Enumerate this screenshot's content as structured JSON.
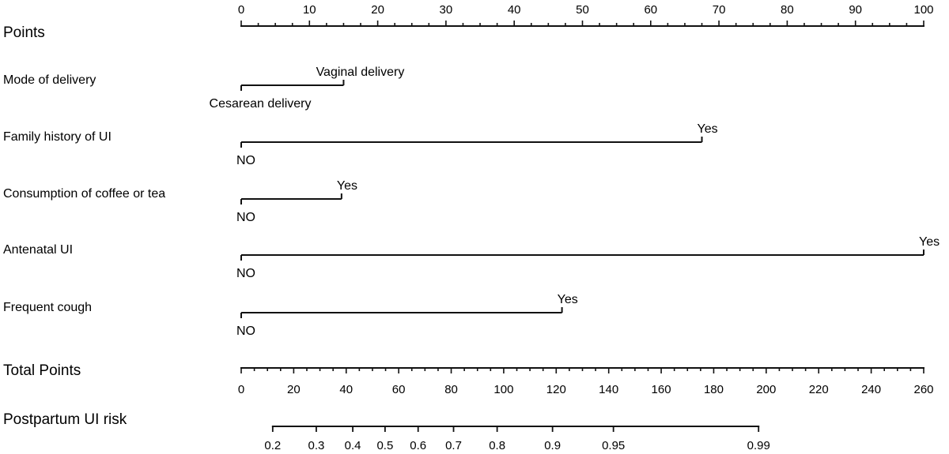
{
  "chart_data": {
    "type": "nomogram",
    "title": "",
    "points_axis": {
      "label": "Points",
      "min": 0,
      "max": 100,
      "major_ticks": [
        0,
        10,
        20,
        30,
        40,
        50,
        60,
        70,
        80,
        90,
        100
      ],
      "minor_step": 2.5
    },
    "predictors": [
      {
        "name": "Mode of delivery",
        "levels": [
          {
            "label": "Cesarean delivery",
            "points": 0,
            "position": "below"
          },
          {
            "label": "Vaginal delivery",
            "points": 15,
            "position": "above"
          }
        ]
      },
      {
        "name": "Family history of UI",
        "levels": [
          {
            "label": "NO",
            "points": 0,
            "position": "below"
          },
          {
            "label": "Yes",
            "points": 67.5,
            "position": "above"
          }
        ]
      },
      {
        "name": "Consumption of coffee or tea",
        "levels": [
          {
            "label": "NO",
            "points": 0,
            "position": "below"
          },
          {
            "label": "Yes",
            "points": 14.7,
            "position": "above"
          }
        ]
      },
      {
        "name": "Antenatal UI",
        "levels": [
          {
            "label": "NO",
            "points": 0,
            "position": "below"
          },
          {
            "label": "Yes",
            "points": 100,
            "position": "above"
          }
        ]
      },
      {
        "name": "Frequent cough",
        "levels": [
          {
            "label": "NO",
            "points": 0,
            "position": "below"
          },
          {
            "label": "Yes",
            "points": 47,
            "position": "above"
          }
        ]
      }
    ],
    "total_points_axis": {
      "label": "Total Points",
      "min": 0,
      "max": 260,
      "major_ticks": [
        0,
        20,
        40,
        60,
        80,
        100,
        120,
        140,
        160,
        180,
        200,
        220,
        240,
        260
      ],
      "minor_step": 5
    },
    "risk_axis": {
      "label": "Postpartum UI risk",
      "ticks": [
        {
          "label": "0.2",
          "total_points": 12
        },
        {
          "label": "0.3",
          "total_points": 28.6
        },
        {
          "label": "0.4",
          "total_points": 42.5
        },
        {
          "label": "0.5",
          "total_points": 54.8
        },
        {
          "label": "0.6",
          "total_points": 67.4
        },
        {
          "label": "0.7",
          "total_points": 80.9
        },
        {
          "label": "0.8",
          "total_points": 97.5
        },
        {
          "label": "0.9",
          "total_points": 118.6
        },
        {
          "label": "0.95",
          "total_points": 141.8
        },
        {
          "label": "0.99",
          "total_points": 197.1
        }
      ]
    },
    "grid": false,
    "legend": null
  }
}
